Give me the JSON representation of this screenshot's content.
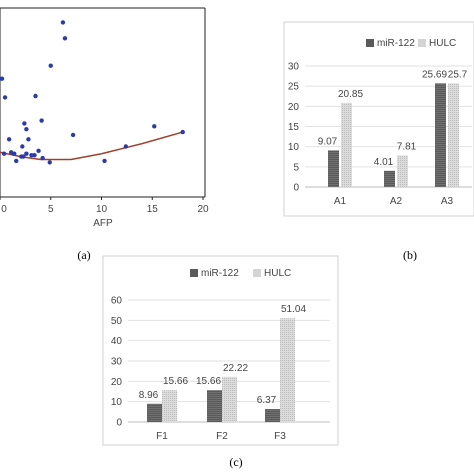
{
  "panel_labels": [
    "(a)",
    "(b)",
    "(c)"
  ],
  "colors": {
    "scatter_point": "#2a3bb0",
    "scatter_line": "#a0402a",
    "mir122": "#5a5a5a",
    "hulc": "#d4d4d4",
    "frame": "#d0d0d0",
    "grid": "#e2e2e2"
  },
  "chart_data": [
    {
      "id": "a",
      "type": "scatter",
      "xlabel": "AFP",
      "xticks": [
        "0",
        "5",
        "10",
        "15",
        "20"
      ],
      "xlim": [
        0,
        20
      ],
      "points": [
        [
          0.2,
          6.6
        ],
        [
          0.5,
          5.3
        ],
        [
          0.9,
          2.4
        ],
        [
          2.2,
          1.9
        ],
        [
          2.6,
          3.1
        ],
        [
          2.4,
          3.5
        ],
        [
          2.8,
          2.4
        ],
        [
          3.5,
          5.4
        ],
        [
          4.1,
          3.7
        ],
        [
          6.2,
          10.5
        ],
        [
          6.4,
          9.4
        ],
        [
          5.0,
          7.5
        ],
        [
          3.8,
          1.6
        ],
        [
          2.1,
          1.2
        ],
        [
          3.4,
          1.3
        ],
        [
          4.2,
          1.1
        ],
        [
          7.2,
          2.7
        ],
        [
          0.4,
          1.4
        ],
        [
          1.1,
          1.5
        ],
        [
          1.4,
          1.4
        ],
        [
          2.3,
          1.2
        ],
        [
          2.6,
          1.4
        ],
        [
          3.1,
          1.3
        ],
        [
          4.9,
          0.8
        ],
        [
          1.6,
          0.9
        ],
        [
          10.3,
          0.9
        ],
        [
          12.4,
          1.9
        ],
        [
          15.2,
          3.3
        ],
        [
          18.0,
          2.9
        ]
      ],
      "trend": [
        [
          0,
          1.5
        ],
        [
          2,
          1.2
        ],
        [
          4,
          1.0
        ],
        [
          7,
          1.0
        ],
        [
          10,
          1.4
        ],
        [
          14,
          2.1
        ],
        [
          18,
          2.9
        ]
      ],
      "ylim": [
        -1.6,
        11.5
      ]
    },
    {
      "id": "b",
      "type": "bar",
      "categories": [
        "A1",
        "A2",
        "A3"
      ],
      "series": [
        {
          "name": "miR-122",
          "values": [
            9.07,
            4.01,
            25.69
          ],
          "labels": [
            "9.07",
            "4.01",
            "25.69"
          ]
        },
        {
          "name": "HULC",
          "values": [
            20.85,
            7.81,
            25.7
          ],
          "labels": [
            "20.85",
            "7.81",
            "25.7"
          ]
        }
      ],
      "yticks": [
        "0",
        "5",
        "10",
        "15",
        "20",
        "25",
        "30"
      ],
      "ylim": [
        0,
        30
      ],
      "legend": "top"
    },
    {
      "id": "c",
      "type": "bar",
      "categories": [
        "F1",
        "F2",
        "F3"
      ],
      "series": [
        {
          "name": "miR-122",
          "values": [
            8.96,
            15.66,
            6.37
          ],
          "labels": [
            "8.96",
            "15.66",
            "6.37"
          ]
        },
        {
          "name": "HULC",
          "values": [
            15.66,
            22.22,
            51.04
          ],
          "labels": [
            "15.66",
            "22.22",
            "51.04"
          ]
        }
      ],
      "yticks": [
        "0",
        "10",
        "20",
        "30",
        "40",
        "50",
        "60"
      ],
      "ylim": [
        0,
        60
      ],
      "legend": "top"
    }
  ]
}
